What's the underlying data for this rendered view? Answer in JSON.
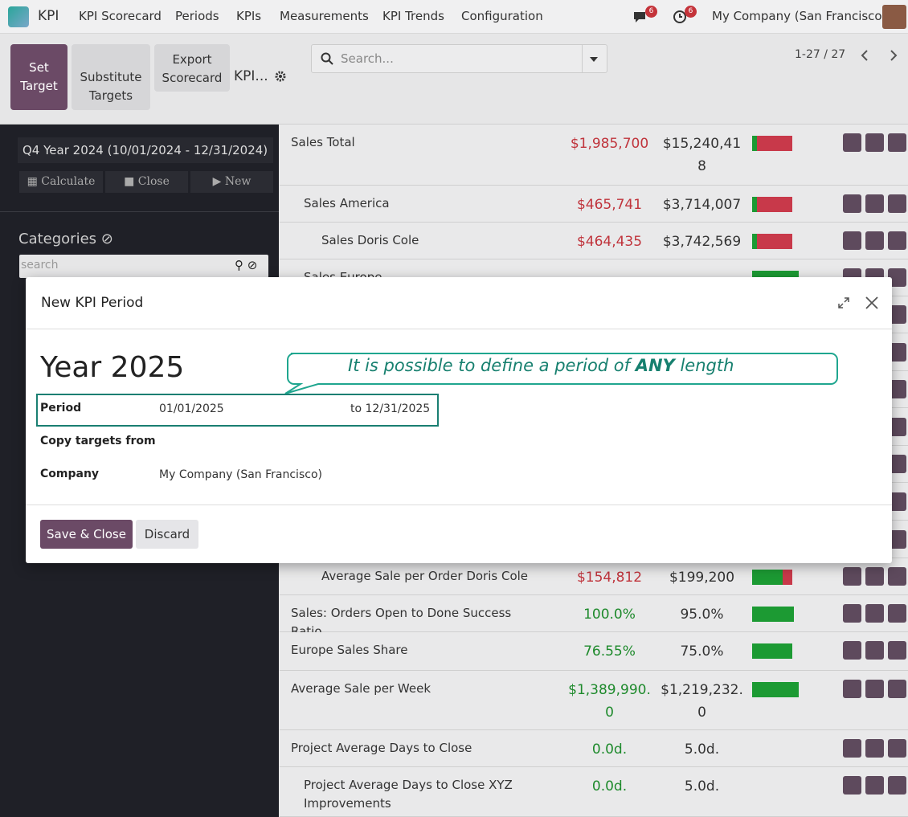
{
  "navbar": {
    "app": "KPI",
    "menu": [
      "KPI Scorecard",
      "Periods",
      "KPIs",
      "Measurements",
      "KPI Trends",
      "Configuration"
    ],
    "messages_badge": "6",
    "activities_badge": "6",
    "company": "My Company (San Francisco)"
  },
  "control_panel": {
    "buttons": [
      "Set Target",
      "Substitute Targets",
      "Export Scorecard"
    ],
    "breadcrumb": "KPI...",
    "search_placeholder": "Search...",
    "pager": "1-27 / 27"
  },
  "sidebar": {
    "period": "Q4 Year 2024 (10/01/2024 - 12/31/2024)",
    "actions": [
      "Calculate",
      "Close",
      "New"
    ],
    "categories_title": "Categories",
    "search_placeholder": "search"
  },
  "rows": [
    {
      "name": "Sales Total",
      "actual": "$1,985,700",
      "target": "$15,240,418"
    },
    {
      "name": "Sales America",
      "actual": "$465,741",
      "target": "$3,714,007"
    },
    {
      "name": "Sales Doris Cole",
      "actual": "$464,435",
      "target": "$3,742,569"
    },
    {
      "name": "Sales Europe"
    },
    {
      "name": "Average Sale per Order Doris Cole",
      "actual": "$154,812",
      "target": "$199,200"
    },
    {
      "name": "Sales: Orders Open to Done Success Ratio",
      "actual": "100.0%",
      "target": "95.0%"
    },
    {
      "name": "Europe Sales Share",
      "actual": "76.55%",
      "target": "75.0%"
    },
    {
      "name": "Average Sale per Week",
      "actual": "$1,389,990.0",
      "target": "$1,219,232.0"
    },
    {
      "name": "Project Average Days to Close",
      "actual": "0.0d.",
      "target": "5.0d."
    },
    {
      "name": "Project Average Days to Close XYZ Improvements",
      "actual": "0.0d.",
      "target": "5.0d."
    }
  ],
  "modal": {
    "title": "New KPI Period",
    "name": "Year 2025",
    "callout": {
      "before": "It is possible to define a period of ",
      "emphasis": "ANY",
      "after": " length"
    },
    "fields": {
      "period_label": "Period",
      "period_start": "01/01/2025",
      "period_end": "to 12/31/2025",
      "copy_label": "Copy targets from",
      "company_label": "Company",
      "company": "My Company (San Francisco)"
    },
    "buttons": {
      "save": "Save & Close",
      "discard": "Discard"
    }
  }
}
